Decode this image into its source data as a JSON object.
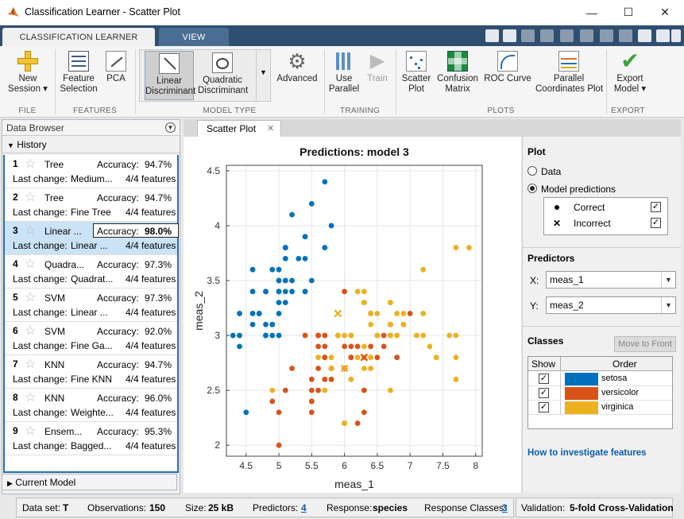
{
  "window": {
    "title": "Classification Learner - Scatter Plot",
    "minimize": "—",
    "maximize": "☐",
    "close": "✕"
  },
  "tabs": {
    "learner": "CLASSIFICATION LEARNER",
    "view": "VIEW"
  },
  "ribbon": {
    "new_session": "New\nSession ▾",
    "feature_selection": "Feature\nSelection",
    "pca": "PCA",
    "linear": "Linear\nDiscriminant",
    "quadratic": "Quadratic\nDiscriminant",
    "advanced": "Advanced",
    "use_parallel": "Use\nParallel",
    "train": "Train",
    "scatter": "Scatter\nPlot",
    "confusion": "Confusion\nMatrix",
    "roc": "ROC Curve",
    "parallel": "Parallel\nCoordinates Plot",
    "export": "Export\nModel ▾",
    "sections": {
      "file": "FILE",
      "features": "FEATURES",
      "model_type": "MODEL TYPE",
      "training": "TRAINING",
      "plots": "PLOTS",
      "export": "EXPORT"
    }
  },
  "data_browser": {
    "title": "Data Browser",
    "history": "History",
    "current_model": "Current Model",
    "last_change_label": "Last change:",
    "accuracy_label": "Accuracy:",
    "models": [
      {
        "num": "1",
        "name": "Tree",
        "accuracy": "94.7%",
        "change": "Medium...",
        "features": "4/4 features"
      },
      {
        "num": "2",
        "name": "Tree",
        "accuracy": "94.7%",
        "change": "Fine Tree",
        "features": "4/4 features"
      },
      {
        "num": "3",
        "name": "Linear ...",
        "accuracy": "98.0%",
        "change": "Linear ...",
        "features": "4/4 features"
      },
      {
        "num": "4",
        "name": "Quadra...",
        "accuracy": "97.3%",
        "change": "Quadrat...",
        "features": "4/4 features"
      },
      {
        "num": "5",
        "name": "SVM",
        "accuracy": "97.3%",
        "change": "Linear ...",
        "features": "4/4 features"
      },
      {
        "num": "6",
        "name": "SVM",
        "accuracy": "92.0%",
        "change": "Fine Ga...",
        "features": "4/4 features"
      },
      {
        "num": "7",
        "name": "KNN",
        "accuracy": "94.7%",
        "change": "Fine KNN",
        "features": "4/4 features"
      },
      {
        "num": "8",
        "name": "KNN",
        "accuracy": "96.0%",
        "change": "Weighte...",
        "features": "4/4 features"
      },
      {
        "num": "9",
        "name": "Ensem...",
        "accuracy": "95.3%",
        "change": "Bagged...",
        "features": "4/4 features"
      }
    ]
  },
  "doc_tab": {
    "label": "Scatter Plot",
    "close": "✕"
  },
  "chart_data": {
    "type": "scatter",
    "title": "Predictions: model 3",
    "xlabel": "meas_1",
    "ylabel": "meas_2",
    "xlim": [
      4.2,
      8.1
    ],
    "ylim": [
      1.9,
      4.55
    ],
    "xticks": [
      "4.5",
      "5",
      "5.5",
      "6",
      "6.5",
      "7",
      "7.5",
      "8"
    ],
    "yticks": [
      "2",
      "2.5",
      "3",
      "3.5",
      "4",
      "4.5"
    ],
    "grid": true,
    "series": [
      {
        "name": "setosa",
        "color": "#0072bd",
        "marker": "dot",
        "points": [
          [
            5.1,
            3.5
          ],
          [
            4.9,
            3.0
          ],
          [
            4.7,
            3.2
          ],
          [
            4.6,
            3.1
          ],
          [
            5.0,
            3.6
          ],
          [
            5.4,
            3.9
          ],
          [
            4.6,
            3.4
          ],
          [
            5.0,
            3.4
          ],
          [
            4.4,
            2.9
          ],
          [
            4.9,
            3.1
          ],
          [
            5.4,
            3.7
          ],
          [
            4.8,
            3.4
          ],
          [
            4.8,
            3.0
          ],
          [
            4.3,
            3.0
          ],
          [
            5.8,
            4.0
          ],
          [
            5.7,
            4.4
          ],
          [
            5.4,
            3.9
          ],
          [
            5.1,
            3.5
          ],
          [
            5.7,
            3.8
          ],
          [
            5.1,
            3.8
          ],
          [
            5.4,
            3.4
          ],
          [
            5.1,
            3.7
          ],
          [
            4.6,
            3.6
          ],
          [
            5.1,
            3.3
          ],
          [
            4.8,
            3.4
          ],
          [
            5.0,
            3.0
          ],
          [
            5.0,
            3.4
          ],
          [
            5.2,
            3.5
          ],
          [
            5.2,
            3.4
          ],
          [
            4.7,
            3.2
          ],
          [
            4.8,
            3.1
          ],
          [
            5.4,
            3.4
          ],
          [
            5.2,
            4.1
          ],
          [
            5.5,
            4.2
          ],
          [
            4.9,
            3.1
          ],
          [
            5.0,
            3.2
          ],
          [
            5.5,
            3.5
          ],
          [
            4.9,
            3.6
          ],
          [
            4.4,
            3.0
          ],
          [
            5.1,
            3.4
          ],
          [
            5.0,
            3.5
          ],
          [
            4.5,
            2.3
          ],
          [
            4.4,
            3.2
          ],
          [
            5.0,
            3.5
          ],
          [
            5.1,
            3.8
          ],
          [
            4.8,
            3.0
          ],
          [
            5.1,
            3.8
          ],
          [
            4.6,
            3.2
          ],
          [
            5.3,
            3.7
          ],
          [
            5.0,
            3.3
          ]
        ]
      },
      {
        "name": "versicolor",
        "color": "#d95319",
        "marker": "dot",
        "points": [
          [
            7.0,
            3.2
          ],
          [
            6.4,
            3.2
          ],
          [
            6.9,
            3.1
          ],
          [
            5.5,
            2.3
          ],
          [
            6.5,
            2.8
          ],
          [
            5.7,
            2.8
          ],
          [
            6.3,
            3.3
          ],
          [
            4.9,
            2.4
          ],
          [
            6.6,
            2.9
          ],
          [
            5.2,
            2.7
          ],
          [
            5.0,
            2.0
          ],
          [
            5.9,
            3.0
          ],
          [
            6.0,
            2.2
          ],
          [
            6.1,
            2.9
          ],
          [
            5.6,
            2.9
          ],
          [
            6.7,
            3.1
          ],
          [
            5.6,
            3.0
          ],
          [
            5.8,
            2.7
          ],
          [
            6.2,
            2.2
          ],
          [
            5.6,
            2.5
          ],
          [
            6.1,
            2.8
          ],
          [
            6.3,
            2.5
          ],
          [
            6.1,
            2.8
          ],
          [
            6.4,
            2.9
          ],
          [
            6.6,
            3.0
          ],
          [
            6.8,
            2.8
          ],
          [
            6.7,
            3.0
          ],
          [
            6.0,
            2.9
          ],
          [
            5.7,
            2.6
          ],
          [
            5.5,
            2.4
          ],
          [
            5.5,
            2.4
          ],
          [
            5.8,
            2.7
          ],
          [
            6.0,
            2.7
          ],
          [
            5.4,
            3.0
          ],
          [
            6.0,
            3.4
          ],
          [
            6.7,
            3.1
          ],
          [
            6.3,
            2.3
          ],
          [
            5.6,
            3.0
          ],
          [
            5.5,
            2.5
          ],
          [
            5.5,
            2.6
          ],
          [
            6.1,
            3.0
          ],
          [
            5.8,
            2.6
          ],
          [
            5.0,
            2.3
          ],
          [
            5.6,
            2.7
          ],
          [
            5.7,
            3.0
          ],
          [
            5.7,
            2.9
          ],
          [
            6.2,
            2.9
          ],
          [
            5.1,
            2.5
          ],
          [
            5.7,
            2.8
          ]
        ]
      },
      {
        "name": "virginica",
        "color": "#edb120",
        "marker": "dot",
        "points": [
          [
            6.3,
            3.3
          ],
          [
            5.8,
            2.7
          ],
          [
            7.1,
            3.0
          ],
          [
            6.3,
            2.9
          ],
          [
            6.5,
            3.0
          ],
          [
            7.6,
            3.0
          ],
          [
            7.3,
            2.9
          ],
          [
            6.7,
            2.5
          ],
          [
            7.2,
            3.6
          ],
          [
            6.5,
            3.2
          ],
          [
            6.4,
            2.7
          ],
          [
            6.8,
            3.0
          ],
          [
            5.7,
            2.5
          ],
          [
            5.8,
            2.8
          ],
          [
            6.4,
            3.2
          ],
          [
            6.5,
            3.0
          ],
          [
            7.7,
            3.8
          ],
          [
            7.7,
            2.6
          ],
          [
            6.0,
            2.2
          ],
          [
            6.9,
            3.2
          ],
          [
            5.6,
            2.8
          ],
          [
            7.7,
            2.8
          ],
          [
            6.3,
            2.7
          ],
          [
            6.7,
            3.3
          ],
          [
            7.2,
            3.2
          ],
          [
            6.2,
            2.8
          ],
          [
            6.1,
            3.0
          ],
          [
            6.4,
            2.8
          ],
          [
            7.2,
            3.0
          ],
          [
            7.4,
            2.8
          ],
          [
            7.9,
            3.8
          ],
          [
            6.4,
            2.8
          ],
          [
            6.3,
            2.8
          ],
          [
            6.1,
            2.6
          ],
          [
            7.7,
            3.0
          ],
          [
            6.3,
            3.4
          ],
          [
            6.4,
            3.1
          ],
          [
            6.0,
            3.0
          ],
          [
            6.9,
            3.1
          ],
          [
            6.7,
            3.1
          ],
          [
            6.9,
            3.1
          ],
          [
            6.8,
            3.2
          ],
          [
            6.7,
            3.3
          ],
          [
            6.7,
            3.0
          ],
          [
            6.5,
            3.0
          ],
          [
            6.2,
            3.4
          ],
          [
            5.9,
            3.0
          ],
          [
            4.9,
            2.5
          ]
        ]
      },
      {
        "name": "incorrect-versicolor",
        "color": "#d95319",
        "marker": "x",
        "points": [
          [
            6.3,
            2.8
          ]
        ]
      },
      {
        "name": "incorrect-virginica",
        "color": "#edb120",
        "marker": "x",
        "points": [
          [
            5.9,
            3.2
          ],
          [
            6.0,
            2.7
          ]
        ]
      }
    ]
  },
  "right_panel": {
    "plot_heading": "Plot",
    "data_label": "Data",
    "predictions_label": "Model predictions",
    "correct_label": "Correct",
    "incorrect_label": "Incorrect",
    "predictors_heading": "Predictors",
    "x_label": "X:",
    "x_value": "meas_1",
    "y_label": "Y:",
    "y_value": "meas_2",
    "classes_heading": "Classes",
    "move_front": "Move to Front",
    "col_show": "Show",
    "col_order": "Order",
    "classes": [
      {
        "name": "setosa",
        "color": "#0072bd"
      },
      {
        "name": "versicolor",
        "color": "#d95319"
      },
      {
        "name": "virginica",
        "color": "#edb120"
      }
    ],
    "help_link": "How to investigate features"
  },
  "status": {
    "dataset_label": "Data set:",
    "dataset": "T",
    "obs_label": "Observations:",
    "obs": "150",
    "size_label": "Size:",
    "size": "25 kB",
    "pred_label": "Predictors:",
    "pred": "4",
    "resp_label": "Response:",
    "resp": "species",
    "rc_label": "Response Classes:",
    "rc": "3",
    "val_label": "Validation:",
    "val": "5-fold Cross-Validation"
  }
}
